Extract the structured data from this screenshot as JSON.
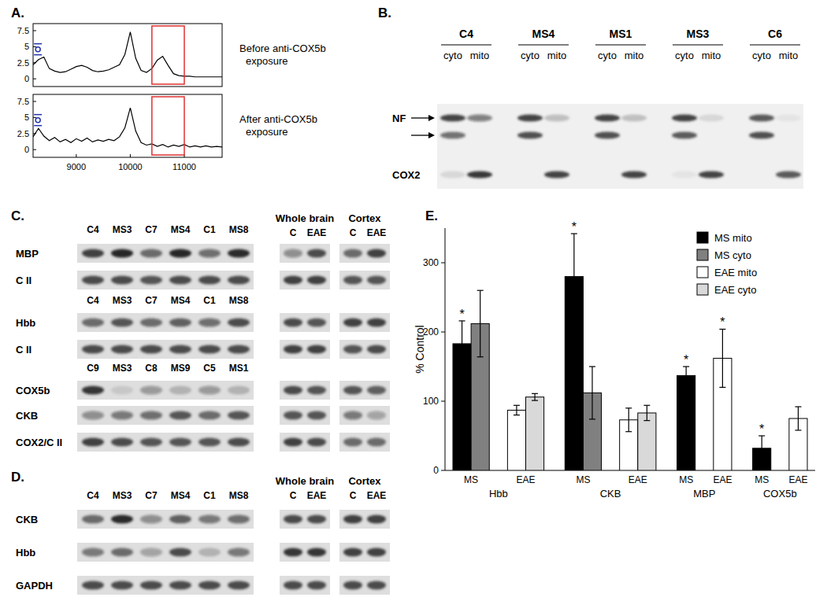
{
  "panels": {
    "a": "A.",
    "b": "B.",
    "c": "C.",
    "d": "D.",
    "e": "E."
  },
  "chart_data": [
    {
      "type": "line",
      "title": "Before anti-COX5b exposure",
      "color": "#000000",
      "x": [
        8200,
        8300,
        8400,
        8500,
        8600,
        8700,
        8800,
        8900,
        9000,
        9100,
        9200,
        9300,
        9400,
        9500,
        9600,
        9700,
        9800,
        9900,
        10000,
        10100,
        10200,
        10300,
        10400,
        10500,
        10600,
        10700,
        10800,
        10900,
        11000,
        11100,
        11200,
        11300,
        11400,
        11500,
        11600,
        11700
      ],
      "values": [
        2.2,
        3.0,
        3.4,
        1.6,
        1.2,
        1.0,
        1.1,
        1.5,
        1.9,
        2.1,
        1.8,
        1.3,
        1.1,
        1.2,
        1.4,
        1.8,
        2.2,
        3.8,
        7.3,
        3.2,
        1.3,
        1.0,
        1.6,
        2.9,
        3.5,
        2.1,
        0.8,
        0.5,
        0.4,
        0.4,
        0.3,
        0.3,
        0.3,
        0.3,
        0.3,
        0.3
      ],
      "xlim": [
        8200,
        11700
      ],
      "ylim": [
        -1.2,
        8.6
      ],
      "yticks": [
        0,
        2.5,
        5,
        7.5
      ],
      "tick_labels": "y",
      "highlight_x": [
        10400,
        11000
      ],
      "markers": [
        {
          "x": 8290,
          "y": 4.6
        }
      ]
    },
    {
      "type": "line",
      "title": "After anti-COX5b exposure",
      "color": "#000000",
      "x": [
        8200,
        8300,
        8400,
        8500,
        8600,
        8700,
        8800,
        8900,
        9000,
        9100,
        9200,
        9300,
        9400,
        9500,
        9600,
        9700,
        9800,
        9900,
        10000,
        10100,
        10200,
        10300,
        10400,
        10500,
        10600,
        10700,
        10800,
        10900,
        11000,
        11100,
        11200,
        11300,
        11400,
        11500,
        11600,
        11700
      ],
      "values": [
        2.0,
        3.3,
        2.1,
        1.4,
        1.9,
        1.2,
        1.6,
        1.1,
        1.7,
        1.3,
        1.8,
        1.2,
        1.5,
        1.3,
        1.6,
        1.4,
        2.0,
        3.4,
        6.5,
        2.9,
        1.1,
        0.7,
        0.9,
        0.5,
        0.8,
        0.4,
        0.7,
        0.5,
        0.8,
        0.4,
        0.6,
        0.4,
        0.6,
        0.4,
        0.5,
        0.4
      ],
      "xlim": [
        8200,
        11700
      ],
      "ylim": [
        -1.2,
        8.6
      ],
      "xticks": [
        9000,
        10000,
        11000
      ],
      "yticks": [
        0,
        2.5,
        5,
        7.5
      ],
      "tick_labels": true,
      "highlight_x": [
        10400,
        11000
      ],
      "markers": [
        {
          "x": 8290,
          "y": 4.6
        }
      ]
    },
    {
      "type": "bar",
      "y_label": "% Control",
      "categories": [
        "Hbb",
        "CKB",
        "MBP",
        "COX5b"
      ],
      "group_labels": [
        "MS",
        "EAE"
      ],
      "series": [
        {
          "name": "MS mito",
          "color": "#000000",
          "values": [
            183,
            280,
            137,
            32
          ],
          "errors": [
            33,
            62,
            13,
            18
          ],
          "annotations": [
            "*",
            "*",
            "*",
            "*"
          ]
        },
        {
          "name": "MS cyto",
          "color": "#808080",
          "values": [
            212,
            112,
            null,
            null
          ],
          "errors": [
            48,
            38,
            null,
            null
          ],
          "annotations": [
            null,
            null,
            null,
            null
          ]
        },
        {
          "name": "EAE mito",
          "color": "#ffffff",
          "values": [
            87,
            73,
            162,
            75
          ],
          "errors": [
            7,
            17,
            42,
            17
          ],
          "annotations": [
            null,
            null,
            "*",
            null
          ]
        },
        {
          "name": "EAE cyto",
          "color": "#d9d9d9",
          "values": [
            106,
            83,
            null,
            null
          ],
          "errors": [
            5,
            11,
            null,
            null
          ],
          "annotations": [
            null,
            null,
            null,
            null
          ]
        }
      ],
      "ylim": [
        0,
        350
      ],
      "yticks": [
        0,
        100,
        200,
        300
      ],
      "legend": "upper right"
    }
  ],
  "blot_b": {
    "groups": [
      "C4",
      "MS4",
      "MS1",
      "MS3",
      "C6"
    ],
    "lanes": [
      "cyto",
      "mito"
    ],
    "rows": [
      {
        "label": "NF",
        "arrow": true,
        "bands": [
          0.8,
          0.5,
          0.8,
          0.2,
          0.8,
          0.2,
          0.8,
          0.1,
          0.7,
          0.05
        ]
      },
      {
        "label": null,
        "arrow": true,
        "bands": [
          0.6,
          0,
          0.75,
          0,
          0.75,
          0,
          0.7,
          0,
          0.75,
          0
        ]
      },
      {
        "label": "COX2",
        "arrow": false,
        "bands": [
          0.1,
          0.85,
          0,
          0.8,
          0,
          0.8,
          0.05,
          0.8,
          0,
          0.7
        ]
      }
    ]
  },
  "blot_c": {
    "right_headers": [
      "Whole brain",
      "Cortex"
    ],
    "right_lanes": [
      "C",
      "EAE"
    ],
    "sections": [
      {
        "lanes": [
          "C4",
          "MS3",
          "C7",
          "MS4",
          "C1",
          "MS8"
        ],
        "rows": [
          {
            "label": "MBP",
            "bands": [
              0.8,
              0.95,
              0.6,
              0.95,
              0.55,
              0.9
            ],
            "right_bands": [
              0.4,
              0.75,
              0.6,
              0.8
            ]
          },
          {
            "label": "C II",
            "bands": [
              0.75,
              0.75,
              0.7,
              0.75,
              0.75,
              0.75
            ],
            "right_bands": [
              0.8,
              0.8,
              0.7,
              0.7
            ]
          }
        ]
      },
      {
        "lanes": [
          "C4",
          "MS3",
          "C7",
          "MS4",
          "C1",
          "MS8"
        ],
        "rows": [
          {
            "label": "Hbb",
            "bands": [
              0.6,
              0.7,
              0.6,
              0.65,
              0.55,
              0.75
            ],
            "right_bands": [
              0.75,
              0.7,
              0.8,
              0.8
            ]
          },
          {
            "label": "C II",
            "bands": [
              0.75,
              0.75,
              0.75,
              0.75,
              0.75,
              0.75
            ],
            "right_bands": [
              0.8,
              0.8,
              0.7,
              0.75
            ]
          }
        ]
      },
      {
        "lanes": [
          "C9",
          "MS3",
          "C8",
          "MS9",
          "C5",
          "MS1"
        ],
        "rows": [
          {
            "label": "COX5b",
            "bands": [
              0.85,
              0.1,
              0.35,
              0.2,
              0.35,
              0.2
            ],
            "right_bands": [
              0.75,
              0.7,
              0.7,
              0.65
            ]
          },
          {
            "label": "CKB",
            "bands": [
              0.4,
              0.5,
              0.55,
              0.7,
              0.6,
              0.7
            ],
            "right_bands": [
              0.7,
              0.7,
              0.5,
              0.3
            ]
          },
          {
            "label": "COX2/C II",
            "bands": [
              0.8,
              0.75,
              0.7,
              0.7,
              0.7,
              0.75
            ],
            "right_bands": [
              0.8,
              0.75,
              0.6,
              0.6
            ]
          }
        ]
      }
    ]
  },
  "blot_d": {
    "right_headers": [
      "Whole brain",
      "Cortex"
    ],
    "right_lanes": [
      "C",
      "EAE"
    ],
    "sections": [
      {
        "lanes": [
          "C4",
          "MS3",
          "C7",
          "MS4",
          "C1",
          "MS8"
        ],
        "rows": [
          {
            "label": "CKB",
            "bands": [
              0.6,
              0.9,
              0.4,
              0.65,
              0.5,
              0.55
            ],
            "right_bands": [
              0.75,
              0.75,
              0.8,
              0.8
            ]
          },
          {
            "label": "Hbb",
            "bands": [
              0.5,
              0.6,
              0.3,
              0.75,
              0.2,
              0.5
            ],
            "right_bands": [
              0.85,
              0.85,
              0.8,
              0.8
            ]
          },
          {
            "label": "GAPDH",
            "bands": [
              0.75,
              0.75,
              0.75,
              0.75,
              0.75,
              0.75
            ],
            "right_bands": [
              0.75,
              0.75,
              0.75,
              0.75
            ]
          }
        ]
      }
    ]
  }
}
